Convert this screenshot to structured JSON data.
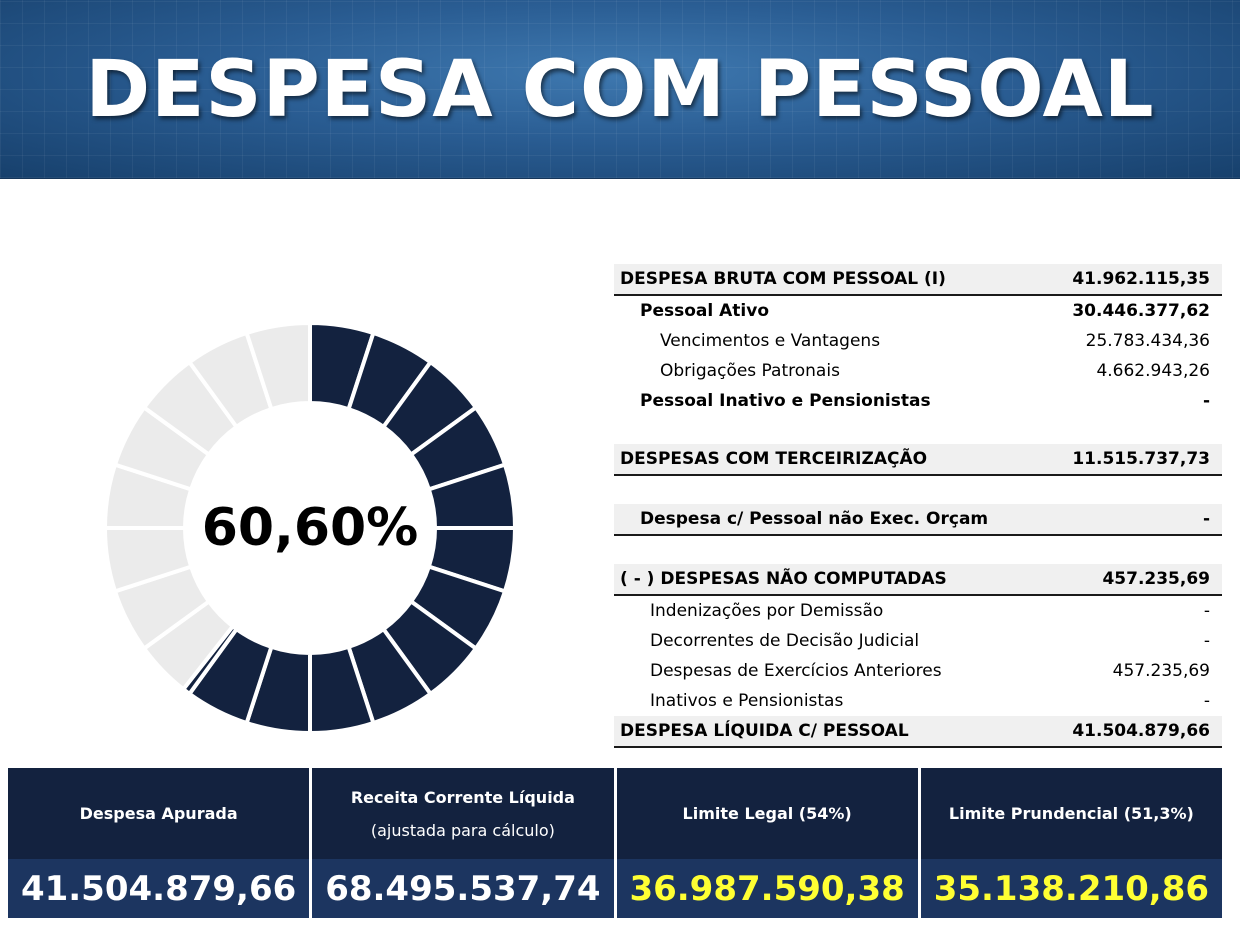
{
  "banner": {
    "title": "DESPESA COM PESSOAL"
  },
  "gauge": {
    "percent_label": "60,60%",
    "value_percent": 60.6,
    "segments": 20,
    "filled_color": "#13223f",
    "empty_color": "#ebebeb"
  },
  "table": {
    "bruta": {
      "label": "DESPESA BRUTA COM PESSOAL (I)",
      "value": "41.962.115,35"
    },
    "ativo": {
      "label": "Pessoal Ativo",
      "value": "30.446.377,62"
    },
    "venc": {
      "label": "Vencimentos e Vantagens",
      "value": "25.783.434,36"
    },
    "obrig": {
      "label": "Obrigações Patronais",
      "value": "4.662.943,26"
    },
    "inativo": {
      "label": "Pessoal Inativo e Pensionistas",
      "value": "-"
    },
    "terceir": {
      "label": "DESPESAS COM TERCEIRIZAÇÃO",
      "value": "11.515.737,73"
    },
    "nao_exec": {
      "label": "Despesa c/ Pessoal não Exec. Orçam",
      "value": "-"
    },
    "nao_comp": {
      "label": "( - ) DESPESAS NÃO COMPUTADAS",
      "value": "457.235,69"
    },
    "indeniz": {
      "label": "Indenizações por Demissão",
      "value": "-"
    },
    "decisao": {
      "label": "Decorrentes de Decisão Judicial",
      "value": "-"
    },
    "exerc": {
      "label": "Despesas de Exercícios Anteriores",
      "value": "457.235,69"
    },
    "inat_pens": {
      "label": "Inativos e Pensionistas",
      "value": "-"
    },
    "liquida": {
      "label": "DESPESA LÍQUIDA C/ PESSOAL",
      "value": "41.504.879,66"
    }
  },
  "summary": {
    "apurada": {
      "label": "Despesa Apurada",
      "value": "41.504.879,66"
    },
    "rcl": {
      "label": "Receita Corrente Líquida",
      "sublabel": "(ajustada para cálculo)",
      "value": "68.495.537,74"
    },
    "legal": {
      "label": "Limite Legal (54%)",
      "value": "36.987.590,38"
    },
    "prudencial": {
      "label": "Limite Prundencial (51,3%)",
      "value": "35.138.210,86"
    },
    "highlight_color": "#ffff33"
  }
}
